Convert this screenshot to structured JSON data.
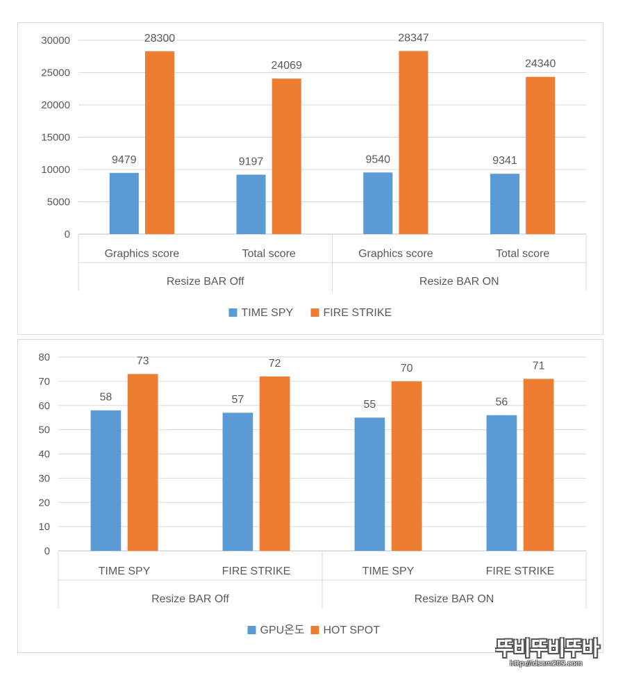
{
  "chart_data": [
    {
      "type": "bar",
      "title": "",
      "group_labels": [
        "Resize BAR Off",
        "Resize BAR ON"
      ],
      "categories": [
        "Graphics score",
        "Total score",
        "Graphics score",
        "Total score"
      ],
      "series": [
        {
          "name": "TIME SPY",
          "color": "#5b9bd5",
          "values": [
            9479,
            9197,
            9540,
            9341
          ]
        },
        {
          "name": "FIRE STRIKE",
          "color": "#ed7d31",
          "values": [
            28300,
            24069,
            28347,
            24340
          ]
        }
      ],
      "ylim": [
        0,
        30000
      ],
      "yticks": [
        0,
        5000,
        10000,
        15000,
        20000,
        25000,
        30000
      ],
      "grid": true,
      "legend": "bottom",
      "xlabel": "",
      "ylabel": ""
    },
    {
      "type": "bar",
      "title": "",
      "group_labels": [
        "Resize BAR Off",
        "Resize BAR ON"
      ],
      "categories": [
        "TIME SPY",
        "FIRE STRIKE",
        "TIME SPY",
        "FIRE STRIKE"
      ],
      "series": [
        {
          "name": "GPU온도",
          "color": "#5b9bd5",
          "values": [
            58,
            57,
            55,
            56
          ]
        },
        {
          "name": "HOT SPOT",
          "color": "#ed7d31",
          "values": [
            73,
            72,
            70,
            71
          ]
        }
      ],
      "ylim": [
        0,
        80
      ],
      "yticks": [
        0,
        10,
        20,
        30,
        40,
        50,
        60,
        70,
        80
      ],
      "grid": true,
      "legend": "bottom",
      "xlabel": "",
      "ylabel": ""
    }
  ],
  "watermark": {
    "logo": "뚜비뚜비뚜바",
    "url": "http://idsam209.com"
  }
}
